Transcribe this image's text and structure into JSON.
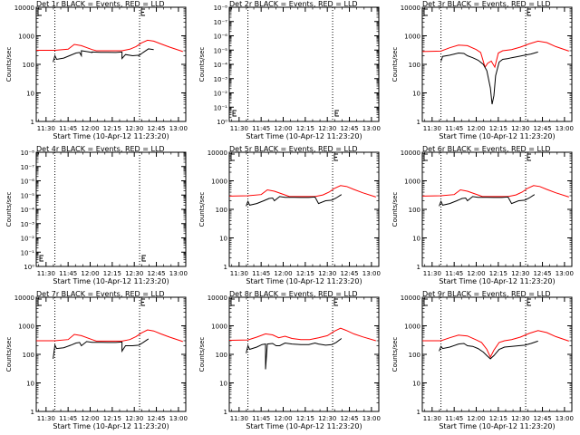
{
  "chart_data": [
    {
      "type": "line",
      "title": "Det 1r BLACK = Events, RED = LLD",
      "xlabel": "Start Time (10-Apr-12 11:23:20)",
      "ylabel": "Counts/sec",
      "yscale": "log",
      "ylim": [
        1,
        10000
      ],
      "ytick_labels": [
        "1",
        "10",
        "100",
        "1000",
        "10000"
      ],
      "xtick_labels": [
        "11:30",
        "11:45",
        "12:00",
        "12:15",
        "12:30",
        "12:45",
        "13:00"
      ],
      "xlim": [
        11.3889,
        13.0833
      ],
      "vlines": [
        11.6,
        12.56
      ],
      "marker": "E",
      "series": [
        {
          "name": "LLD",
          "color": "#ff0000",
          "x": [
            11.39,
            11.6,
            11.75,
            11.82,
            11.9,
            12.02,
            12.07,
            12.3,
            12.36,
            12.45,
            12.52,
            12.58,
            12.65,
            12.72,
            12.8,
            12.9,
            13.05
          ],
          "y": [
            310,
            310,
            340,
            500,
            450,
            330,
            300,
            300,
            300,
            340,
            420,
            560,
            700,
            650,
            520,
            400,
            280
          ]
        },
        {
          "name": "Events",
          "color": "#000000",
          "x": [
            11.39,
            11.58,
            11.58,
            11.6,
            11.62,
            11.7,
            11.78,
            11.84,
            11.88,
            11.9,
            11.9,
            11.96,
            12.02,
            12.02,
            12.12,
            12.2,
            12.29,
            12.36,
            12.36,
            12.4,
            12.48,
            12.55,
            12.55,
            12.6,
            12.66,
            12.72,
            12.72
          ],
          "y": [
            null,
            null,
            120,
            200,
            150,
            165,
            210,
            250,
            260,
            200,
            300,
            280,
            260,
            270,
            265,
            262,
            260,
            270,
            160,
            220,
            200,
            210,
            200,
            260,
            350,
            330,
            null
          ]
        }
      ]
    },
    {
      "type": "line",
      "title": "Det 2r BLACK = Events, RED = LLD",
      "xlabel": "Start Time (10-Apr-12 11:23:20)",
      "ylabel": "Counts/sec",
      "yscale": "log",
      "ylim": [
        1,
        1e-08
      ],
      "ytick_labels": [
        "10⁰",
        "10⁻¹",
        "10⁻²",
        "10⁻³",
        "10⁻⁴",
        "10⁻⁵",
        "10⁻⁶",
        "10⁻⁷",
        "10⁻⁸"
      ],
      "xtick_labels": [
        "11:30",
        "11:45",
        "12:00",
        "12:15",
        "12:30",
        "12:45",
        "13:00"
      ],
      "xlim": [
        11.3889,
        13.0833
      ],
      "vlines": [
        11.6,
        12.56
      ],
      "marker": "E",
      "series": []
    },
    {
      "type": "line",
      "title": "Det 3r BLACK = Events, RED = LLD",
      "xlabel": "Start Time (10-Apr-12 11:23:20)",
      "ylabel": "Counts/sec",
      "yscale": "log",
      "ylim": [
        1,
        10000
      ],
      "ytick_labels": [
        "1",
        "10",
        "100",
        "1000",
        "10000"
      ],
      "xtick_labels": [
        "11:30",
        "11:45",
        "12:00",
        "12:15",
        "12:30",
        "12:45",
        "13:00"
      ],
      "xlim": [
        11.3889,
        13.0833
      ],
      "vlines": [
        11.6,
        12.56
      ],
      "marker": "E",
      "series": [
        {
          "name": "LLD",
          "color": "#ff0000",
          "x": [
            11.39,
            11.6,
            11.7,
            11.8,
            11.9,
            12.0,
            12.05,
            12.1,
            12.13,
            12.17,
            12.21,
            12.25,
            12.3,
            12.4,
            12.5,
            12.6,
            12.7,
            12.8,
            12.9,
            13.05
          ],
          "y": [
            280,
            290,
            380,
            470,
            450,
            330,
            260,
            80,
            110,
            130,
            80,
            250,
            300,
            330,
            400,
            520,
            650,
            580,
            420,
            290
          ]
        },
        {
          "name": "Events",
          "color": "#000000",
          "x": [
            11.39,
            11.6,
            11.62,
            11.7,
            11.8,
            11.86,
            11.9,
            11.96,
            12.02,
            12.08,
            12.12,
            12.16,
            12.18,
            12.2,
            12.22,
            12.26,
            12.3,
            12.36,
            12.4,
            12.48,
            12.55,
            12.62,
            12.7,
            12.72
          ],
          "y": [
            null,
            130,
            190,
            210,
            250,
            240,
            200,
            170,
            140,
            100,
            60,
            15,
            4,
            8,
            40,
            120,
            150,
            160,
            170,
            190,
            210,
            230,
            270,
            null
          ]
        }
      ]
    },
    {
      "type": "line",
      "title": "Det 4r BLACK = Events, RED = LLD",
      "xlabel": "Start Time (10-Apr-12 11:23:20)",
      "ylabel": "Counts/sec",
      "yscale": "log",
      "ylim": [
        1,
        1e-08
      ],
      "ytick_labels": [
        "10⁰",
        "10⁻¹",
        "10⁻²",
        "10⁻³",
        "10⁻⁴",
        "10⁻⁵",
        "10⁻⁶",
        "10⁻⁷",
        "10⁻⁸"
      ],
      "xtick_labels": [
        "11:30",
        "11:45",
        "12:00",
        "12:15",
        "12:30",
        "12:45",
        "13:00"
      ],
      "xlim": [
        11.3889,
        13.0833
      ],
      "vlines": [
        11.6,
        12.56
      ],
      "marker": "E",
      "series": []
    },
    {
      "type": "line",
      "title": "Det 5r BLACK = Events, RED = LLD",
      "xlabel": "Start Time (10-Apr-12 11:23:20)",
      "ylabel": "Counts/sec",
      "yscale": "log",
      "ylim": [
        1,
        10000
      ],
      "ytick_labels": [
        "1",
        "10",
        "100",
        "1000",
        "10000"
      ],
      "xtick_labels": [
        "11:30",
        "11:45",
        "12:00",
        "12:15",
        "12:30",
        "12:45",
        "13:00"
      ],
      "xlim": [
        11.3889,
        13.0833
      ],
      "vlines": [
        11.6,
        12.56
      ],
      "marker": "E",
      "series": [
        {
          "name": "LLD",
          "color": "#ff0000",
          "x": [
            11.39,
            11.6,
            11.75,
            11.82,
            11.9,
            12.02,
            12.07,
            12.3,
            12.36,
            12.45,
            12.52,
            12.58,
            12.65,
            12.72,
            12.8,
            12.9,
            13.05
          ],
          "y": [
            290,
            300,
            330,
            480,
            430,
            320,
            280,
            280,
            280,
            320,
            400,
            540,
            680,
            630,
            500,
            380,
            270
          ]
        },
        {
          "name": "Events",
          "color": "#000000",
          "x": [
            11.58,
            11.6,
            11.62,
            11.7,
            11.78,
            11.84,
            11.88,
            11.9,
            11.96,
            12.02,
            12.12,
            12.2,
            12.29,
            12.36,
            12.4,
            12.48,
            12.55,
            12.6,
            12.66,
            12.72
          ],
          "y": [
            130,
            190,
            140,
            160,
            200,
            240,
            250,
            200,
            280,
            265,
            262,
            260,
            260,
            270,
            160,
            200,
            210,
            250,
            330,
            null
          ]
        }
      ]
    },
    {
      "type": "line",
      "title": "Det 6r BLACK = Events, RED = LLD",
      "xlabel": "Start Time (10-Apr-12 11:23:20)",
      "ylabel": "Counts/sec",
      "yscale": "log",
      "ylim": [
        1,
        10000
      ],
      "ytick_labels": [
        "1",
        "10",
        "100",
        "1000",
        "10000"
      ],
      "xtick_labels": [
        "11:30",
        "11:45",
        "12:00",
        "12:15",
        "12:30",
        "12:45",
        "13:00"
      ],
      "xlim": [
        11.3889,
        13.0833
      ],
      "vlines": [
        11.6,
        12.56
      ],
      "marker": "E",
      "series": [
        {
          "name": "LLD",
          "color": "#ff0000",
          "x": [
            11.39,
            11.6,
            11.75,
            11.82,
            11.9,
            12.02,
            12.07,
            12.3,
            12.36,
            12.45,
            12.52,
            12.58,
            12.65,
            12.72,
            12.8,
            12.9,
            13.05
          ],
          "y": [
            290,
            300,
            330,
            480,
            430,
            320,
            280,
            280,
            280,
            320,
            400,
            540,
            680,
            630,
            500,
            380,
            270
          ]
        },
        {
          "name": "Events",
          "color": "#000000",
          "x": [
            11.58,
            11.6,
            11.62,
            11.7,
            11.78,
            11.84,
            11.88,
            11.9,
            11.96,
            12.02,
            12.12,
            12.2,
            12.29,
            12.36,
            12.4,
            12.48,
            12.55,
            12.6,
            12.66,
            12.72
          ],
          "y": [
            130,
            190,
            140,
            160,
            200,
            240,
            250,
            200,
            280,
            265,
            262,
            260,
            260,
            270,
            160,
            200,
            210,
            250,
            330,
            null
          ]
        }
      ]
    },
    {
      "type": "line",
      "title": "Det 7r BLACK = Events, RED = LLD",
      "xlabel": "Start Time (10-Apr-12 11:23:20)",
      "ylabel": "Counts/sec",
      "yscale": "log",
      "ylim": [
        1,
        10000
      ],
      "ytick_labels": [
        "1",
        "10",
        "100",
        "1000",
        "10000"
      ],
      "xtick_labels": [
        "11:30",
        "11:45",
        "12:00",
        "12:15",
        "12:30",
        "12:45",
        "13:00"
      ],
      "xlim": [
        11.3889,
        13.0833
      ],
      "vlines": [
        11.6,
        12.56
      ],
      "marker": "E",
      "series": [
        {
          "name": "LLD",
          "color": "#ff0000",
          "x": [
            11.39,
            11.6,
            11.75,
            11.82,
            11.9,
            12.02,
            12.07,
            12.3,
            12.36,
            12.45,
            12.52,
            12.58,
            12.65,
            12.72,
            12.8,
            12.9,
            13.05
          ],
          "y": [
            300,
            300,
            330,
            500,
            450,
            330,
            290,
            290,
            290,
            330,
            420,
            560,
            720,
            660,
            520,
            400,
            280
          ]
        },
        {
          "name": "Events",
          "color": "#000000",
          "x": [
            11.58,
            11.58,
            11.6,
            11.62,
            11.7,
            11.78,
            11.84,
            11.88,
            11.9,
            11.96,
            12.02,
            12.12,
            12.2,
            12.29,
            12.36,
            12.36,
            12.4,
            12.48,
            12.55,
            12.6,
            12.66,
            12.72
          ],
          "y": [
            null,
            70,
            210,
            160,
            170,
            210,
            250,
            260,
            200,
            280,
            265,
            262,
            260,
            260,
            270,
            130,
            200,
            200,
            210,
            260,
            350,
            null
          ]
        }
      ]
    },
    {
      "type": "line",
      "title": "Det 8r BLACK = Events, RED = LLD",
      "xlabel": "Start Time (10-Apr-12 11:23:20)",
      "ylabel": "Counts/sec",
      "yscale": "log",
      "ylim": [
        1,
        10000
      ],
      "ytick_labels": [
        "1",
        "10",
        "100",
        "1000",
        "10000"
      ],
      "xtick_labels": [
        "11:30",
        "11:45",
        "12:00",
        "12:15",
        "12:30",
        "12:45",
        "13:00"
      ],
      "xlim": [
        11.3889,
        13.0833
      ],
      "vlines": [
        11.6,
        12.56
      ],
      "marker": "E",
      "series": [
        {
          "name": "LLD",
          "color": "#ff0000",
          "x": [
            11.39,
            11.6,
            11.7,
            11.8,
            11.88,
            11.95,
            12.02,
            12.1,
            12.2,
            12.3,
            12.4,
            12.5,
            12.58,
            12.65,
            12.72,
            12.8,
            12.9,
            13.05
          ],
          "y": [
            310,
            320,
            400,
            520,
            480,
            380,
            430,
            360,
            330,
            330,
            380,
            450,
            650,
            820,
            680,
            520,
            410,
            300
          ]
        },
        {
          "name": "Events",
          "color": "#000000",
          "x": [
            11.58,
            11.58,
            11.6,
            11.62,
            11.7,
            11.76,
            11.8,
            11.8,
            11.82,
            11.88,
            11.92,
            11.96,
            12.02,
            12.1,
            12.2,
            12.29,
            12.36,
            12.4,
            12.48,
            12.55,
            12.6,
            12.66,
            12.72
          ],
          "y": [
            null,
            110,
            200,
            150,
            180,
            220,
            230,
            30,
            230,
            240,
            200,
            200,
            250,
            230,
            220,
            220,
            250,
            230,
            210,
            220,
            260,
            360,
            null
          ]
        }
      ]
    },
    {
      "type": "line",
      "title": "Det 9r BLACK = Events, RED = LLD",
      "xlabel": "Start Time (10-Apr-12 11:23:20)",
      "ylabel": "Counts/sec",
      "yscale": "log",
      "ylim": [
        1,
        10000
      ],
      "ytick_labels": [
        "1",
        "10",
        "100",
        "1000",
        "10000"
      ],
      "xtick_labels": [
        "11:30",
        "11:45",
        "12:00",
        "12:15",
        "12:30",
        "12:45",
        "13:00"
      ],
      "xlim": [
        11.3889,
        13.0833
      ],
      "vlines": [
        11.6,
        12.56
      ],
      "marker": "E",
      "series": [
        {
          "name": "LLD",
          "color": "#ff0000",
          "x": [
            11.39,
            11.6,
            11.7,
            11.8,
            11.9,
            12.0,
            12.06,
            12.12,
            12.16,
            12.2,
            12.26,
            12.32,
            12.4,
            12.5,
            12.6,
            12.7,
            12.8,
            12.9,
            13.05
          ],
          "y": [
            300,
            300,
            380,
            470,
            440,
            320,
            260,
            150,
            80,
            140,
            260,
            300,
            330,
            400,
            540,
            680,
            580,
            420,
            290
          ]
        },
        {
          "name": "Events",
          "color": "#000000",
          "x": [
            11.58,
            11.6,
            11.62,
            11.7,
            11.8,
            11.86,
            11.9,
            11.96,
            12.02,
            12.08,
            12.12,
            12.16,
            12.2,
            12.26,
            12.32,
            12.4,
            12.48,
            12.55,
            12.62,
            12.7,
            12.72
          ],
          "y": [
            130,
            190,
            160,
            180,
            230,
            240,
            200,
            190,
            160,
            120,
            90,
            70,
            90,
            150,
            180,
            190,
            200,
            210,
            240,
            290,
            null
          ]
        }
      ]
    }
  ]
}
